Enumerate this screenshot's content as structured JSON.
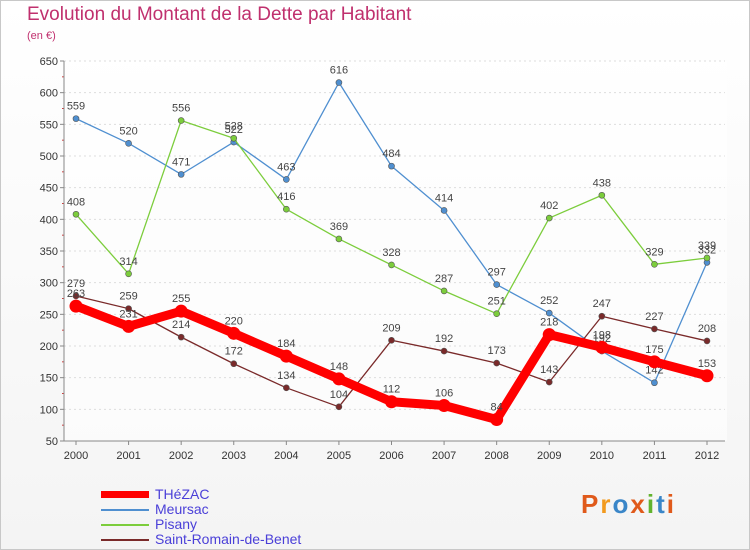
{
  "title": "Evolution du Montant de la Dette par Habitant",
  "unit_label": "(en €)",
  "logo": {
    "text": "Proxiti",
    "colors": [
      "#e05a1b",
      "#f29a1e",
      "#3a86c8",
      "#e05a1b",
      "#62b32e",
      "#3a86c8",
      "#e05a1b"
    ]
  },
  "chart_data": {
    "type": "line",
    "x": [
      "2000",
      "2001",
      "2002",
      "2003",
      "2004",
      "2005",
      "2006",
      "2007",
      "2008",
      "2009",
      "2010",
      "2011",
      "2012"
    ],
    "ylim": [
      50,
      650
    ],
    "yticks": [
      50,
      100,
      150,
      200,
      250,
      300,
      350,
      400,
      450,
      500,
      550,
      600,
      650
    ],
    "grid": "horizontal dotted",
    "legend_position": "bottom-left",
    "series": [
      {
        "name": "THéZAC",
        "color": "#ff0000",
        "values": [
          263,
          231,
          255,
          220,
          184,
          148,
          112,
          106,
          84,
          218,
          198,
          175,
          153
        ]
      },
      {
        "name": "Meursac",
        "color": "#4f8fd0",
        "values": [
          559,
          520,
          471,
          522,
          463,
          616,
          484,
          414,
          297,
          252,
          192,
          142,
          332
        ]
      },
      {
        "name": "Pisany",
        "color": "#7ccd3c",
        "values": [
          408,
          314,
          556,
          528,
          416,
          369,
          328,
          287,
          251,
          402,
          438,
          329,
          339
        ]
      },
      {
        "name": "Saint-Romain-de-Benet",
        "color": "#7a2a2a",
        "values": [
          279,
          259,
          214,
          172,
          134,
          104,
          209,
          192,
          173,
          143,
          247,
          227,
          208
        ]
      }
    ]
  }
}
